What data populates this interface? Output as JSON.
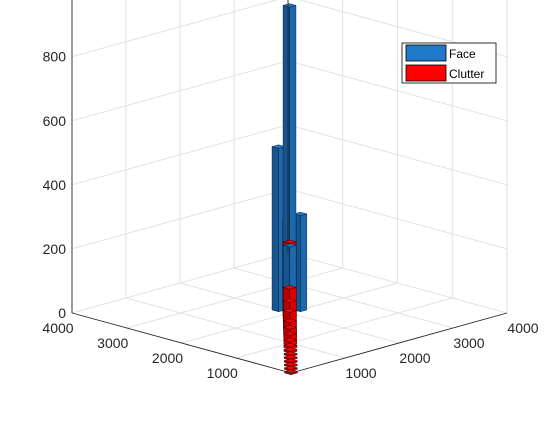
{
  "chart_data": {
    "type": "bar3",
    "title": "",
    "xlabel": "",
    "ylabel": "",
    "zlabel": "",
    "grid": true,
    "legend_position": "top-right",
    "x_ticks": [
      "1000",
      "2000",
      "3000",
      "4000"
    ],
    "y_ticks": [
      "1000",
      "2000",
      "3000",
      "4000"
    ],
    "z_ticks": [
      "0",
      "200",
      "400",
      "600",
      "800"
    ],
    "zlim": [
      0,
      980
    ],
    "series": [
      {
        "name": "Face",
        "color": "#1f78c8",
        "bars": [
          {
            "x": 2000,
            "y": 2000,
            "z": 960
          },
          {
            "x": 2000,
            "y": 2200,
            "z": 510
          },
          {
            "x": 2200,
            "y": 2000,
            "z": 300
          },
          {
            "x": 1800,
            "y": 1800,
            "z": 230
          },
          {
            "x": 2200,
            "y": 2200,
            "z": 170
          }
        ]
      },
      {
        "name": "Clutter",
        "color": "#ff0000",
        "diagonal_values": [
          {
            "pos": 0,
            "z": 5
          },
          {
            "pos": 120,
            "z": 5
          },
          {
            "pos": 240,
            "z": 5
          },
          {
            "pos": 360,
            "z": 5
          },
          {
            "pos": 480,
            "z": 5
          },
          {
            "pos": 600,
            "z": 5
          },
          {
            "pos": 720,
            "z": 6
          },
          {
            "pos": 840,
            "z": 8
          },
          {
            "pos": 960,
            "z": 14
          },
          {
            "pos": 1080,
            "z": 22
          },
          {
            "pos": 1200,
            "z": 30
          },
          {
            "pos": 1320,
            "z": 40
          },
          {
            "pos": 1440,
            "z": 60
          },
          {
            "pos": 1560,
            "z": 80
          },
          {
            "pos": 1680,
            "z": 110
          },
          {
            "pos": 1800,
            "z": 160
          },
          {
            "pos": 1920,
            "z": 230
          },
          {
            "pos": 2040,
            "z": 290
          },
          {
            "pos": 2160,
            "z": 240
          },
          {
            "pos": 2280,
            "z": 175
          },
          {
            "pos": 2400,
            "z": 130
          },
          {
            "pos": 2520,
            "z": 95
          },
          {
            "pos": 2640,
            "z": 70
          },
          {
            "pos": 2760,
            "z": 50
          },
          {
            "pos": 2880,
            "z": 35
          },
          {
            "pos": 3000,
            "z": 24
          },
          {
            "pos": 3120,
            "z": 16
          },
          {
            "pos": 3240,
            "z": 10
          },
          {
            "pos": 3360,
            "z": 8
          },
          {
            "pos": 3480,
            "z": 6
          },
          {
            "pos": 3600,
            "z": 5
          },
          {
            "pos": 3720,
            "z": 5
          },
          {
            "pos": 3840,
            "z": 5
          },
          {
            "pos": 3960,
            "z": 5
          }
        ]
      }
    ]
  }
}
